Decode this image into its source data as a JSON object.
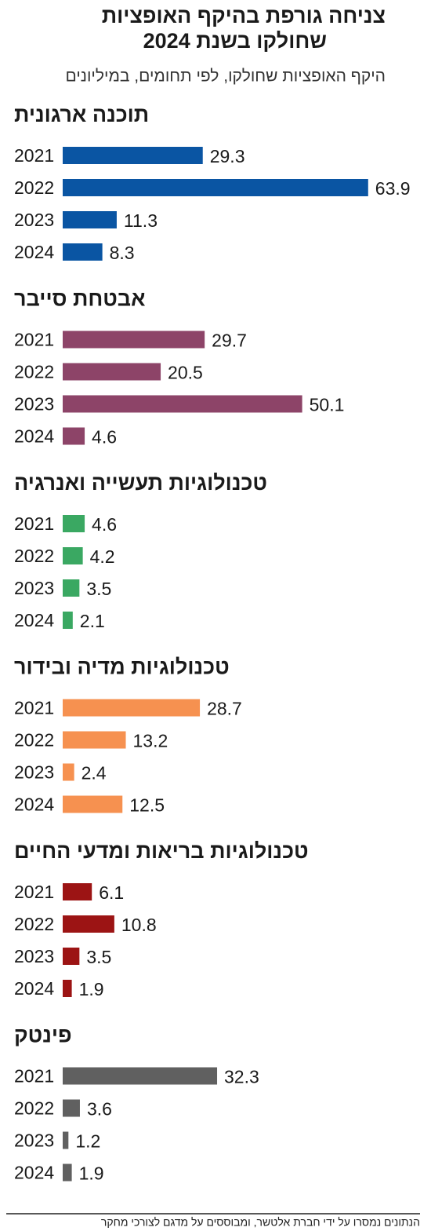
{
  "title_lines": [
    "צניחה גורפת בהיקף האופציות",
    "שחולקו בשנת 2024"
  ],
  "subtitle": "היקף האופציות שחולקו, לפי תחומים, במיליונים",
  "note": "הנתונים נמסרו על ידי חברת אלטשר, ומבוססים על מדגם לצורכי מחקר",
  "chart_data": [
    {
      "type": "bar",
      "title": "תוכנה ארגונית",
      "categories": [
        "2021",
        "2022",
        "2023",
        "2024"
      ],
      "values": [
        29.3,
        63.9,
        11.3,
        8.3
      ],
      "color": "#0a55a3",
      "xlim": [
        0,
        70
      ]
    },
    {
      "type": "bar",
      "title": "אבטחת סייבר",
      "categories": [
        "2021",
        "2022",
        "2023",
        "2024"
      ],
      "values": [
        29.7,
        20.5,
        50.1,
        4.6
      ],
      "color": "#8d4468",
      "xlim": [
        0,
        70
      ]
    },
    {
      "type": "bar",
      "title": "טכנולוגיות תעשייה ואנרגיה",
      "categories": [
        "2021",
        "2022",
        "2023",
        "2024"
      ],
      "values": [
        4.6,
        4.2,
        3.5,
        2.1
      ],
      "color": "#3aa862",
      "xlim": [
        0,
        70
      ]
    },
    {
      "type": "bar",
      "title": "טכנולוגיות מדיה ובידור",
      "categories": [
        "2021",
        "2022",
        "2023",
        "2024"
      ],
      "values": [
        28.7,
        13.2,
        2.4,
        12.5
      ],
      "color": "#f69150",
      "xlim": [
        0,
        70
      ]
    },
    {
      "type": "bar",
      "title": "טכנולוגיות בריאות ומדעי החיים",
      "categories": [
        "2021",
        "2022",
        "2023",
        "2024"
      ],
      "values": [
        6.1,
        10.8,
        3.5,
        1.9
      ],
      "color": "#9c1414",
      "xlim": [
        0,
        70
      ]
    },
    {
      "type": "bar",
      "title": "פינטק",
      "categories": [
        "2021",
        "2022",
        "2023",
        "2024"
      ],
      "values": [
        32.3,
        3.6,
        1.2,
        1.9
      ],
      "color": "#606060",
      "xlim": [
        0,
        70
      ]
    }
  ]
}
